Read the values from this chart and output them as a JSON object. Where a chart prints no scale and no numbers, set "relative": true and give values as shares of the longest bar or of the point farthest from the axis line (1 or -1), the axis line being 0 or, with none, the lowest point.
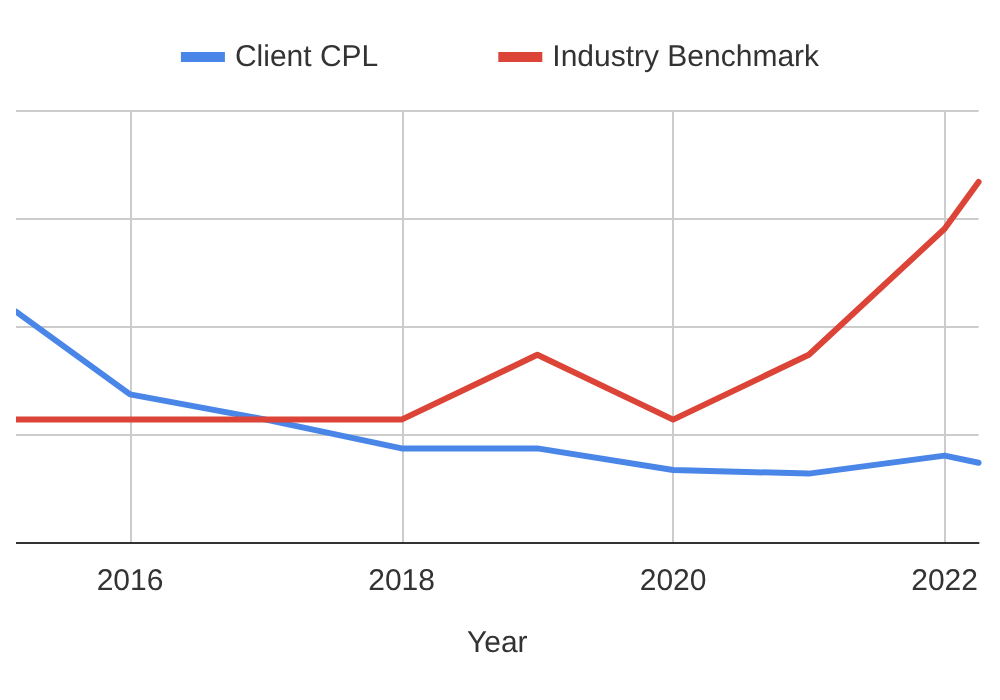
{
  "chart_data": {
    "type": "line",
    "relative": true,
    "xlabel": "Year",
    "x": [
      2015.16,
      2016,
      2017,
      2018,
      2019,
      2020,
      2021,
      2022,
      2022.25
    ],
    "xlim": [
      2015.16,
      2022.25
    ],
    "xticks": [
      2016,
      2018,
      2020,
      2022
    ],
    "grid": true,
    "legend": "top",
    "marker": "none",
    "line_style": "solid",
    "series": [
      {
        "name": "Client CPL",
        "color": "#4a86e8",
        "values": [
          0.64,
          0.41,
          0.34,
          0.26,
          0.26,
          0.2,
          0.19,
          0.24,
          0.22
        ]
      },
      {
        "name": "Industry Benchmark",
        "color": "#db4437",
        "values": [
          0.34,
          0.34,
          0.34,
          0.34,
          0.52,
          0.34,
          0.52,
          0.87,
          1
        ]
      }
    ]
  }
}
